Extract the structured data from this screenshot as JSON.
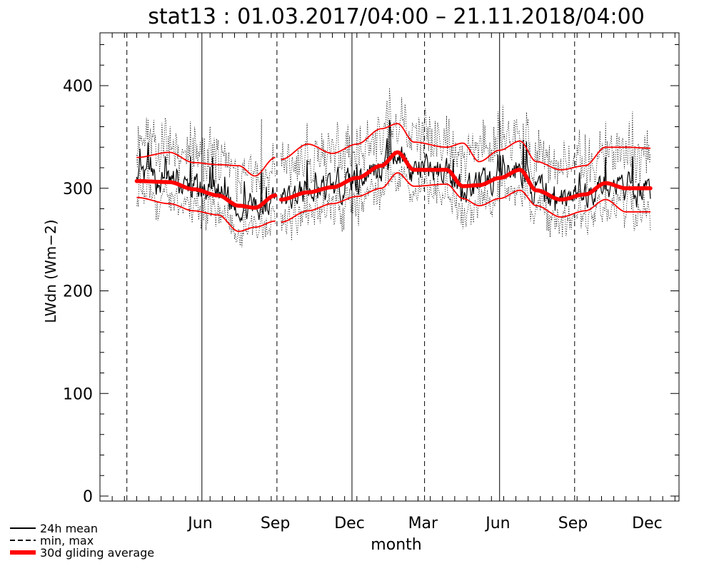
{
  "chart_data": {
    "type": "line",
    "title": "stat13 : 01.03.2017/04:00 – 21.11.2018/04:00",
    "xlabel": "month",
    "ylabel": "LWdn (Wm−2)",
    "ylim": [
      0,
      450
    ],
    "yticks": [
      0,
      100,
      200,
      300,
      400
    ],
    "xlim_days": [
      -45,
      665
    ],
    "x_ticks": [
      {
        "label": "Jun",
        "day": 78
      },
      {
        "label": "Sep",
        "day": 170
      },
      {
        "label": "Dec",
        "day": 261
      },
      {
        "label": "Mar",
        "day": 351
      },
      {
        "label": "Jun",
        "day": 443
      },
      {
        "label": "Sep",
        "day": 535
      },
      {
        "label": "Dec",
        "day": 626
      }
    ],
    "verticals": [
      {
        "day": -12,
        "style": "dashed"
      },
      {
        "day": 80,
        "style": "solid"
      },
      {
        "day": 172,
        "style": "dashed"
      },
      {
        "day": 264,
        "style": "solid"
      },
      {
        "day": 353,
        "style": "dashed"
      },
      {
        "day": 445,
        "style": "solid"
      },
      {
        "day": 537,
        "style": "dashed"
      }
    ],
    "legend": [
      {
        "label": "24h mean",
        "style": "solid",
        "color": "#000000"
      },
      {
        "label": "min, max",
        "style": "dashed",
        "color": "#000000"
      },
      {
        "label": "30d gliding average",
        "style": "thick",
        "color": "#ff0000"
      }
    ],
    "gap_days": [
      170,
      177
    ],
    "series_end_day": 630,
    "avg_curve": [
      [
        0,
        307
      ],
      [
        40,
        306
      ],
      [
        70,
        299
      ],
      [
        100,
        293
      ],
      [
        125,
        283
      ],
      [
        145,
        281
      ],
      [
        170,
        293
      ],
      [
        177,
        289
      ],
      [
        210,
        296
      ],
      [
        240,
        301
      ],
      [
        270,
        310
      ],
      [
        300,
        322
      ],
      [
        320,
        335
      ],
      [
        340,
        318
      ],
      [
        380,
        318
      ],
      [
        400,
        302
      ],
      [
        420,
        303
      ],
      [
        445,
        310
      ],
      [
        470,
        318
      ],
      [
        490,
        298
      ],
      [
        520,
        289
      ],
      [
        550,
        294
      ],
      [
        575,
        305
      ],
      [
        600,
        300
      ],
      [
        630,
        300
      ]
    ],
    "upper_envelope": [
      [
        0,
        330
      ],
      [
        40,
        335
      ],
      [
        70,
        325
      ],
      [
        100,
        323
      ],
      [
        125,
        322
      ],
      [
        145,
        312
      ],
      [
        170,
        330
      ],
      [
        177,
        328
      ],
      [
        210,
        343
      ],
      [
        240,
        334
      ],
      [
        270,
        343
      ],
      [
        300,
        358
      ],
      [
        320,
        363
      ],
      [
        340,
        345
      ],
      [
        380,
        340
      ],
      [
        400,
        344
      ],
      [
        420,
        326
      ],
      [
        445,
        337
      ],
      [
        470,
        346
      ],
      [
        490,
        326
      ],
      [
        520,
        318
      ],
      [
        550,
        322
      ],
      [
        575,
        340
      ],
      [
        600,
        340
      ],
      [
        630,
        339
      ]
    ],
    "lower_envelope": [
      [
        0,
        291
      ],
      [
        40,
        285
      ],
      [
        70,
        278
      ],
      [
        100,
        274
      ],
      [
        125,
        258
      ],
      [
        145,
        262
      ],
      [
        170,
        268
      ],
      [
        177,
        267
      ],
      [
        210,
        278
      ],
      [
        240,
        285
      ],
      [
        270,
        292
      ],
      [
        300,
        300
      ],
      [
        320,
        315
      ],
      [
        340,
        302
      ],
      [
        380,
        304
      ],
      [
        400,
        290
      ],
      [
        420,
        283
      ],
      [
        445,
        290
      ],
      [
        470,
        298
      ],
      [
        490,
        283
      ],
      [
        520,
        272
      ],
      [
        550,
        278
      ],
      [
        575,
        289
      ],
      [
        600,
        277
      ],
      [
        630,
        277
      ]
    ],
    "colors": {
      "mean": "#000000",
      "avg": "#ff0000",
      "envelope": "#ff0000",
      "axis": "#000000",
      "text": "#000000"
    }
  }
}
